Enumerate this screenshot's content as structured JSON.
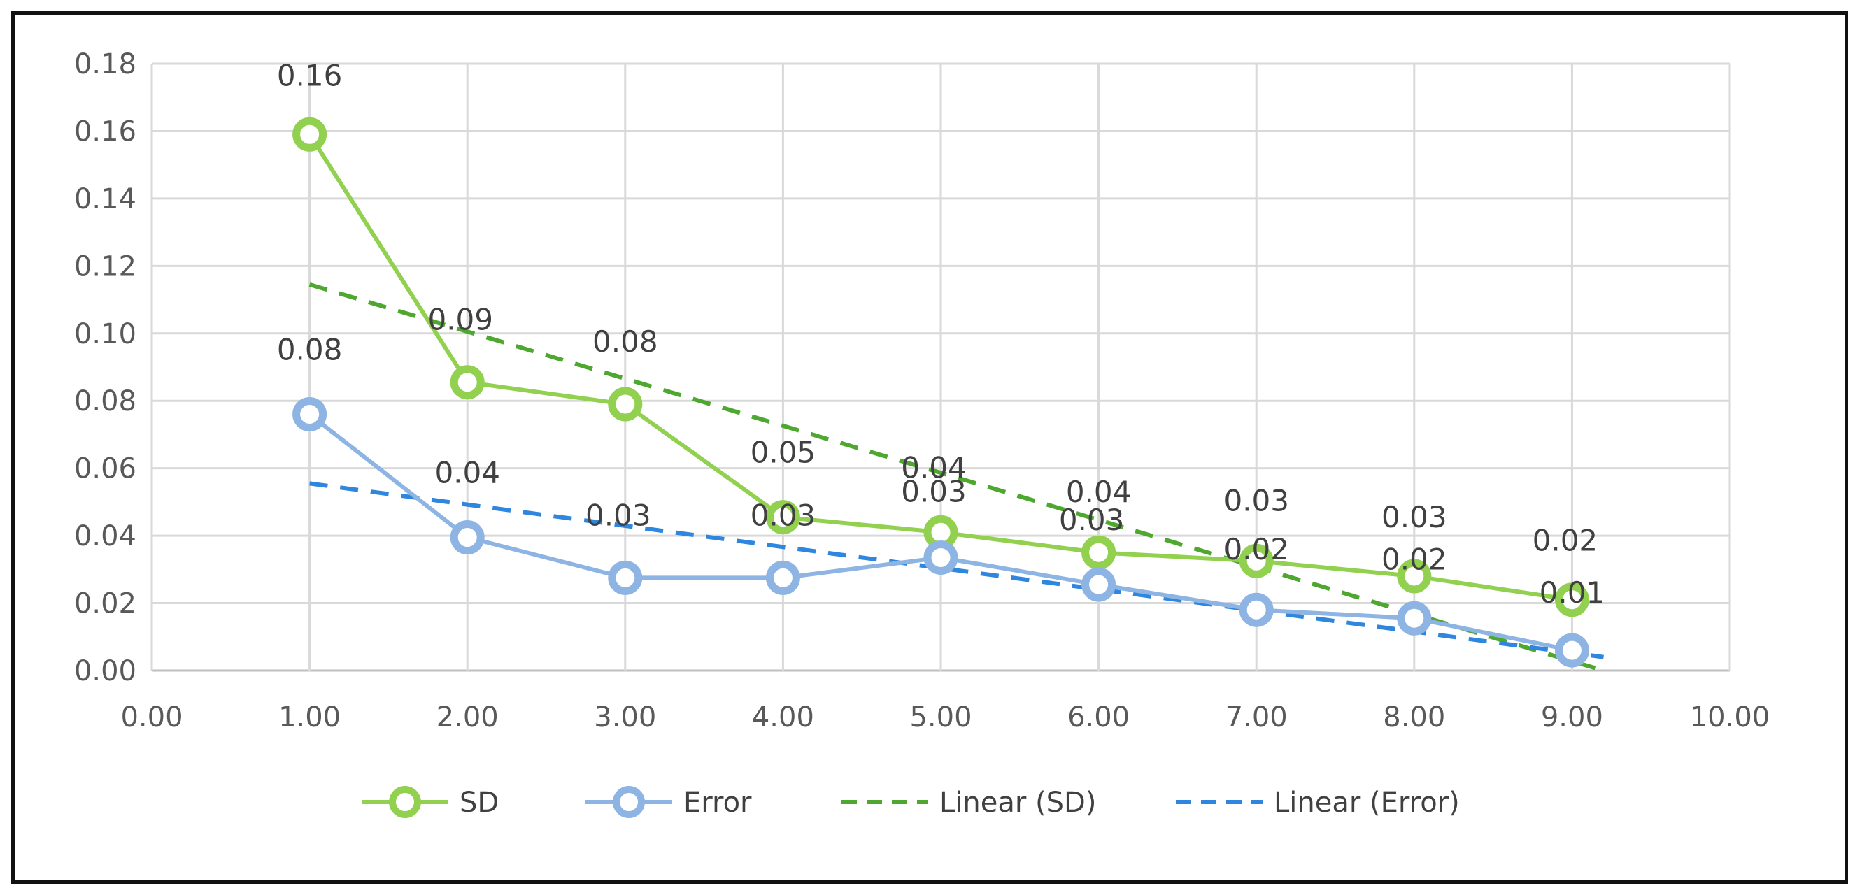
{
  "chart_data": {
    "type": "line",
    "title": "",
    "xlabel": "",
    "ylabel": "",
    "xlim": [
      0,
      10
    ],
    "ylim": [
      0,
      0.18
    ],
    "x_ticks": [
      "0.00",
      "1.00",
      "2.00",
      "3.00",
      "4.00",
      "5.00",
      "6.00",
      "7.00",
      "8.00",
      "9.00",
      "10.00"
    ],
    "y_ticks": [
      "0.00",
      "0.02",
      "0.04",
      "0.06",
      "0.08",
      "0.10",
      "0.12",
      "0.14",
      "0.16",
      "0.18"
    ],
    "grid": true,
    "legend_position": "bottom",
    "series": [
      {
        "name": "SD",
        "color": "#92D050",
        "marker": "circle",
        "x": [
          1,
          2,
          3,
          4,
          5,
          6,
          7,
          8,
          9
        ],
        "y": [
          0.159,
          0.0855,
          0.079,
          0.0455,
          0.041,
          0.035,
          0.0325,
          0.028,
          0.021
        ],
        "data_labels": [
          "0.16",
          "0.09",
          "0.08",
          "0.05",
          "0.04",
          "0.04",
          "0.03",
          "0.03",
          "0.02"
        ]
      },
      {
        "name": "Error",
        "color": "#8DB4E2",
        "marker": "circle",
        "x": [
          1,
          2,
          3,
          4,
          5,
          6,
          7,
          8,
          9
        ],
        "y": [
          0.076,
          0.0395,
          0.0275,
          0.0275,
          0.0335,
          0.0255,
          0.018,
          0.0155,
          0.006
        ],
        "data_labels": [
          "0.08",
          "0.04",
          "0.03",
          "0.03",
          "0.03",
          "0.03",
          "0.02",
          "0.02",
          "0.01"
        ]
      }
    ],
    "trendlines": [
      {
        "name": "Linear (SD)",
        "color": "#4EA72E",
        "dash": true,
        "x": [
          1,
          9.2
        ],
        "y": [
          0.1145,
          0.0
        ]
      },
      {
        "name": "Linear (Error)",
        "color": "#2E86DE",
        "dash": true,
        "x": [
          1,
          9.2
        ],
        "y": [
          0.0555,
          0.004
        ]
      }
    ],
    "legend": [
      "SD",
      "Error",
      "Linear (SD)",
      "Linear (Error)"
    ]
  }
}
